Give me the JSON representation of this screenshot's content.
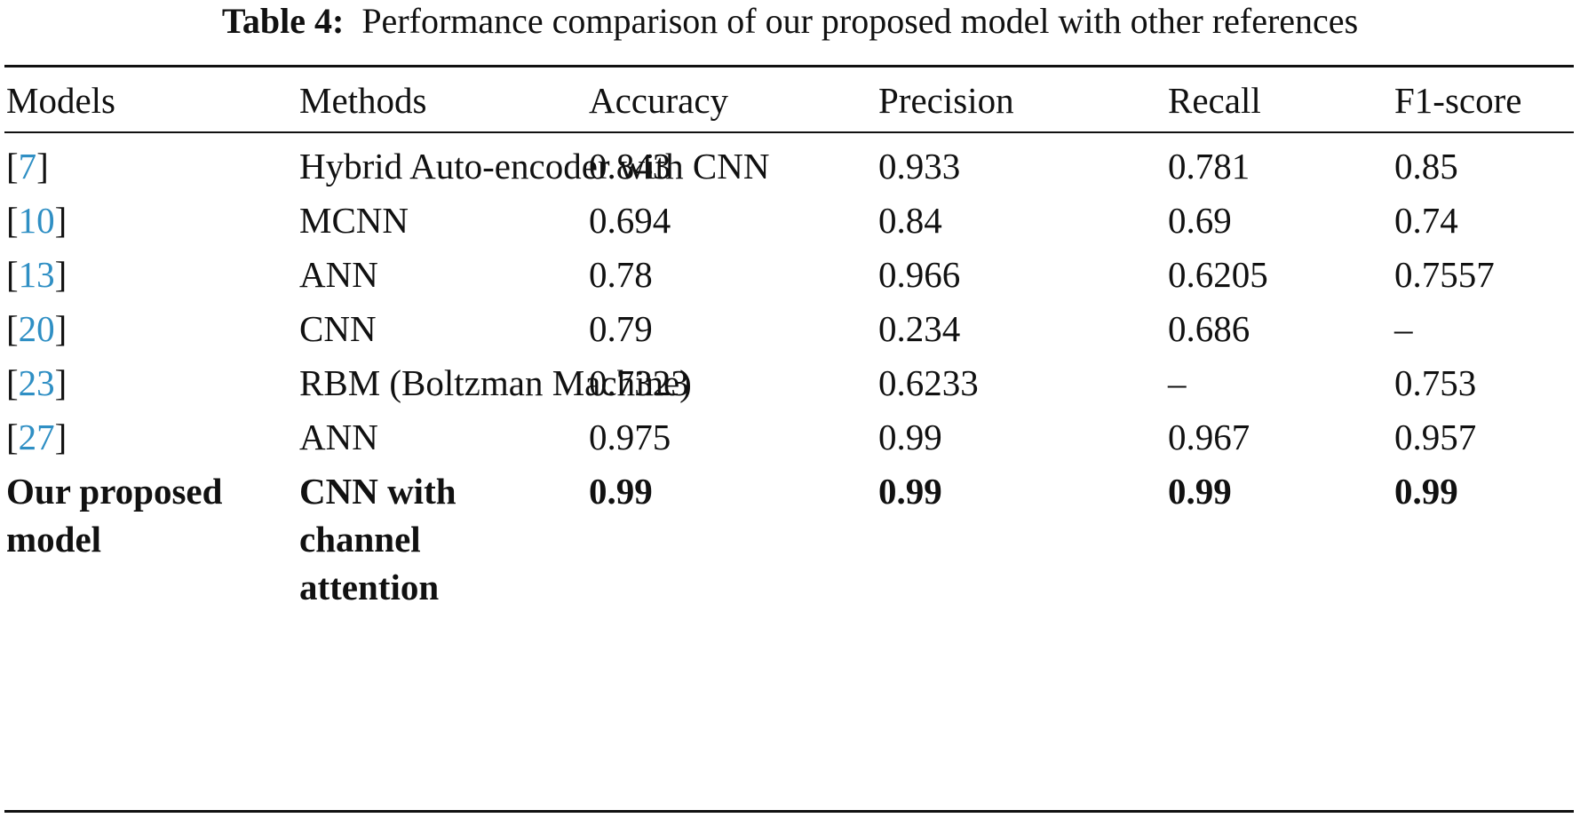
{
  "table": {
    "caption_label": "Table 4:",
    "caption_text": "Performance comparison of our proposed model with other references",
    "headers": [
      "Models",
      "Methods",
      "Accuracy",
      "Precision",
      "Recall",
      "F1-score"
    ],
    "rows": [
      {
        "ref": "7",
        "method": "Hybrid\nAuto-encoder\nwith CNN",
        "accuracy": "0.843",
        "precision": "0.933",
        "recall": "0.781",
        "f1": "0.85"
      },
      {
        "ref": "10",
        "method": "MCNN",
        "accuracy": "0.694",
        "precision": "0.84",
        "recall": "0.69",
        "f1": "0.74"
      },
      {
        "ref": "13",
        "method": "ANN",
        "accuracy": "0.78",
        "precision": "0.966",
        "recall": "0.6205",
        "f1": "0.7557"
      },
      {
        "ref": "20",
        "method": "CNN",
        "accuracy": "0.79",
        "precision": "0.234",
        "recall": "0.686",
        "f1": "–"
      },
      {
        "ref": "23",
        "method": "RBM\n(Boltzman\nMachine)",
        "accuracy": "0.7323",
        "precision": "0.6233",
        "recall": "–",
        "f1": "0.753"
      },
      {
        "ref": "27",
        "method": "ANN",
        "accuracy": "0.975",
        "precision": "0.99",
        "recall": "0.967",
        "f1": "0.957"
      }
    ],
    "proposed": {
      "model": "Our proposed\nmodel",
      "method": "CNN with\nchannel\nattention",
      "accuracy": "0.99",
      "precision": "0.99",
      "recall": "0.99",
      "f1": "0.99"
    }
  },
  "colors": {
    "reference_link": "#2f8fc4",
    "text": "#111111"
  }
}
